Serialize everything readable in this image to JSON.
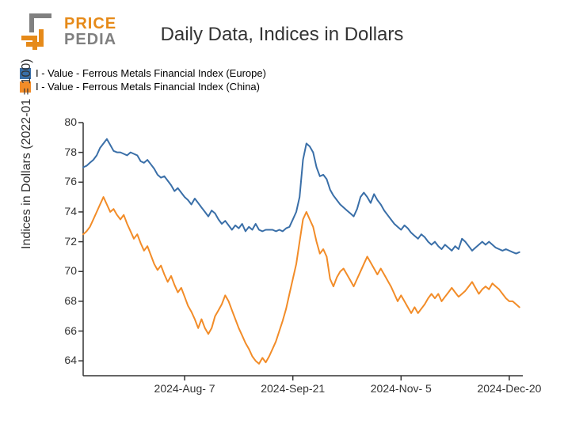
{
  "logo": {
    "top_word": "PRICE",
    "bottom_word": "PEDIA",
    "orange": "#e68a19",
    "gray": "#808080"
  },
  "title": "Daily Data, Indices in Dollars",
  "title_fontsize": 24,
  "legend": {
    "items": [
      {
        "label": "I - Value - Ferrous Metals Financial Index (Europe)",
        "color": "#3a6fa8"
      },
      {
        "label": "I - Value - Ferrous Metals Financial Index (China)",
        "color": "#f28c28"
      }
    ]
  },
  "chart": {
    "type": "line",
    "ylabel": "Indices in Dollars (2022-01 = 100)",
    "label_fontsize": 16,
    "tick_fontsize": 14,
    "ylim": [
      63,
      80
    ],
    "yticks": [
      64,
      66,
      68,
      70,
      72,
      74,
      76,
      78,
      80
    ],
    "xlim": [
      0,
      130
    ],
    "xticks": [
      {
        "pos": 30,
        "label": "2024-Aug- 7"
      },
      {
        "pos": 62,
        "label": "2024-Sep-21"
      },
      {
        "pos": 94,
        "label": "2024-Nov- 5"
      },
      {
        "pos": 126,
        "label": "2024-Dec-20"
      }
    ],
    "axis_color": "#333333",
    "background_color": "#ffffff",
    "line_width": 2,
    "series": [
      {
        "name": "europe",
        "color": "#3a6fa8",
        "data": [
          77.0,
          77.1,
          77.3,
          77.5,
          77.8,
          78.3,
          78.6,
          78.9,
          78.5,
          78.1,
          78.0,
          78.0,
          77.9,
          77.8,
          78.0,
          77.9,
          77.8,
          77.4,
          77.3,
          77.5,
          77.2,
          76.9,
          76.5,
          76.3,
          76.4,
          76.1,
          75.8,
          75.4,
          75.6,
          75.3,
          75.0,
          74.8,
          74.5,
          74.9,
          74.6,
          74.3,
          74.0,
          73.7,
          74.1,
          73.9,
          73.5,
          73.2,
          73.4,
          73.1,
          72.8,
          73.1,
          72.9,
          73.2,
          72.7,
          73.0,
          72.8,
          73.2,
          72.8,
          72.7,
          72.8,
          72.8,
          72.8,
          72.7,
          72.8,
          72.7,
          72.9,
          73.0,
          73.5,
          74.0,
          75.0,
          77.5,
          78.6,
          78.4,
          78.0,
          77.0,
          76.4,
          76.5,
          76.2,
          75.5,
          75.1,
          74.8,
          74.5,
          74.3,
          74.1,
          73.9,
          73.7,
          74.2,
          75.0,
          75.3,
          75.0,
          74.6,
          75.2,
          74.8,
          74.5,
          74.1,
          73.8,
          73.5,
          73.2,
          73.0,
          72.8,
          73.1,
          72.9,
          72.6,
          72.4,
          72.2,
          72.5,
          72.3,
          72.0,
          71.8,
          72.0,
          71.7,
          71.5,
          71.8,
          71.6,
          71.4,
          71.7,
          71.5,
          72.2,
          72.0,
          71.7,
          71.4,
          71.6,
          71.8,
          72.0,
          71.8,
          72.0,
          71.8,
          71.6,
          71.5,
          71.4,
          71.5,
          71.4,
          71.3,
          71.2,
          71.3
        ]
      },
      {
        "name": "china",
        "color": "#f28c28",
        "data": [
          72.5,
          72.7,
          73.0,
          73.5,
          74.0,
          74.5,
          75.0,
          74.5,
          74.0,
          74.2,
          73.8,
          73.5,
          73.8,
          73.2,
          72.7,
          72.2,
          72.5,
          71.9,
          71.4,
          71.7,
          71.1,
          70.5,
          70.1,
          70.4,
          69.8,
          69.3,
          69.7,
          69.1,
          68.6,
          68.9,
          68.3,
          67.7,
          67.3,
          66.8,
          66.2,
          66.8,
          66.2,
          65.8,
          66.2,
          67.0,
          67.4,
          67.8,
          68.4,
          68.0,
          67.4,
          66.8,
          66.2,
          65.7,
          65.2,
          64.8,
          64.3,
          64.0,
          63.8,
          64.2,
          63.9,
          64.3,
          64.8,
          65.3,
          66.0,
          66.7,
          67.5,
          68.5,
          69.5,
          70.5,
          72.0,
          73.5,
          74.0,
          73.5,
          73.0,
          72.0,
          71.2,
          71.5,
          71.0,
          69.5,
          69.0,
          69.6,
          70.0,
          70.2,
          69.8,
          69.4,
          69.0,
          69.5,
          70.0,
          70.5,
          71.0,
          70.6,
          70.2,
          69.8,
          70.2,
          69.8,
          69.4,
          69.0,
          68.5,
          68.0,
          68.4,
          68.0,
          67.6,
          67.2,
          67.6,
          67.2,
          67.5,
          67.8,
          68.2,
          68.5,
          68.2,
          68.5,
          68.0,
          68.3,
          68.6,
          68.9,
          68.6,
          68.3,
          68.5,
          68.7,
          69.0,
          69.3,
          68.9,
          68.5,
          68.8,
          69.0,
          68.8,
          69.2,
          69.0,
          68.8,
          68.5,
          68.2,
          68.0,
          68.0,
          67.8,
          67.6
        ]
      }
    ]
  }
}
